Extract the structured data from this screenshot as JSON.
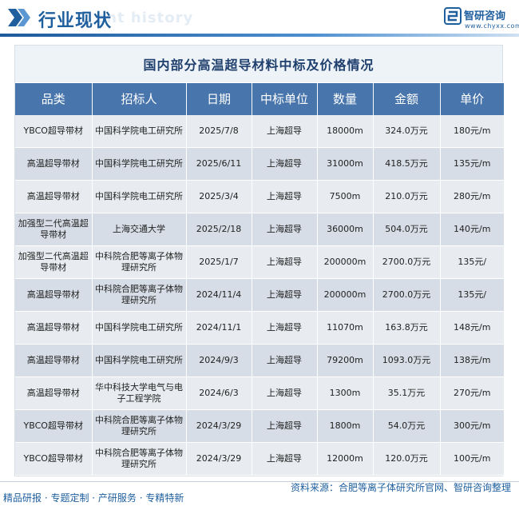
{
  "header": {
    "title": "行业现状",
    "watermark": "ent history",
    "brand_name": "智研咨询",
    "brand_url": "www.chyxx.com"
  },
  "table": {
    "caption": "国内部分高温超导材料中标及价格情况",
    "columns": [
      "品类",
      "招标人",
      "日期",
      "中标单位",
      "数量",
      "金额",
      "单价"
    ],
    "rows": [
      [
        "YBCO超导带材",
        "中国科学院电工研究所",
        "2025/7/8",
        "上海超导",
        "18000m",
        "324.0万元",
        "180元/m"
      ],
      [
        "高温超导带材",
        "中国科学院电工研究所",
        "2025/6/11",
        "上海超导",
        "31000m",
        "418.5万元",
        "135元/m"
      ],
      [
        "高温超导带材",
        "中国科学院电工研究所",
        "2025/3/4",
        "上海超导",
        "7500m",
        "210.0万元",
        "280元/m"
      ],
      [
        "加强型二代高温超导带材",
        "上海交通大学",
        "2025/2/18",
        "上海超导",
        "36000m",
        "504.0万元",
        "140元/m"
      ],
      [
        "加强型二代高温超导带材",
        "中科院合肥等离子体物理研究所",
        "2025/1/7",
        "上海超导",
        "200000m",
        "2700.0万元",
        "135元/"
      ],
      [
        "高温超导带材",
        "中科院合肥等离子体物理研究所",
        "2024/11/4",
        "上海超导",
        "200000m",
        "2700.0万元",
        "135元/"
      ],
      [
        "高温超导带材",
        "中国科学院电工研究所",
        "2024/11/1",
        "上海超导",
        "11070m",
        "163.8万元",
        "148元/m"
      ],
      [
        "高温超导带材",
        "中国科学院电工研究所",
        "2024/9/3",
        "上海超导",
        "79200m",
        "1093.0万元",
        "138元/m"
      ],
      [
        "高温超导带材",
        "华中科技大学电气与电子工程学院",
        "2024/6/3",
        "上海超导",
        "1300m",
        "35.1万元",
        "270元/m"
      ],
      [
        "YBCO超导带材",
        "中科院合肥等离子体物理研究所",
        "2024/3/29",
        "上海超导",
        "1800m",
        "54.0万元",
        "300元/m"
      ],
      [
        "YBCO超导带材",
        "中科院合肥等离子体物理研究所",
        "2024/3/29",
        "上海超导",
        "12000m",
        "120.0万元",
        "100元/m"
      ]
    ]
  },
  "footer": {
    "source": "资料来源：合肥等离子体研究所官网、智研咨询整理",
    "tagline": "精品研报 · 专题定制 · 产研服务 · 专精特新"
  },
  "colors": {
    "brand_blue": "#1f5f9e",
    "header_row": "#4875ab",
    "row_light": "#e8ecf0",
    "row_dark": "#d6dde6"
  }
}
